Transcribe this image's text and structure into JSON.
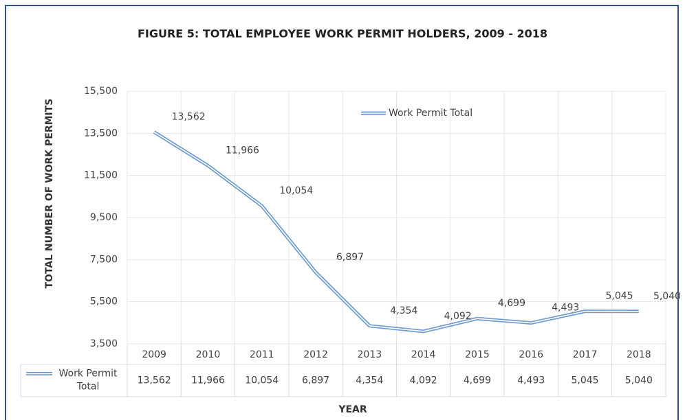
{
  "chart_data": {
    "type": "line",
    "title": "FIGURE 5: TOTAL EMPLOYEE WORK PERMIT HOLDERS, 2009 - 2018",
    "x_label": "YEAR",
    "y_label": "TOTAL NUMBER OF  WORK PERMITS",
    "categories": [
      "2009",
      "2010",
      "2011",
      "2012",
      "2013",
      "2014",
      "2015",
      "2016",
      "2017",
      "2018"
    ],
    "series": [
      {
        "name": "Work Permit Total",
        "color": "#6f9bd1",
        "values": [
          13562,
          11966,
          10054,
          6897,
          4354,
          4092,
          4699,
          4493,
          5045,
          5040
        ],
        "value_labels": [
          "13,562",
          "11,966",
          "10,054",
          "6,897",
          "4,354",
          "4,092",
          "4,699",
          "4,493",
          "5,045",
          "5,040"
        ]
      }
    ],
    "ylim": [
      3500,
      15500
    ],
    "yticks": [
      {
        "value": 3500,
        "label": "3,500"
      },
      {
        "value": 5500,
        "label": "5,500"
      },
      {
        "value": 7500,
        "label": "7,500"
      },
      {
        "value": 9500,
        "label": "9,500"
      },
      {
        "value": 11500,
        "label": "11,500"
      },
      {
        "value": 13500,
        "label": "13,500"
      },
      {
        "value": 15500,
        "label": "15,500"
      }
    ],
    "grid": true,
    "legend": "top"
  }
}
